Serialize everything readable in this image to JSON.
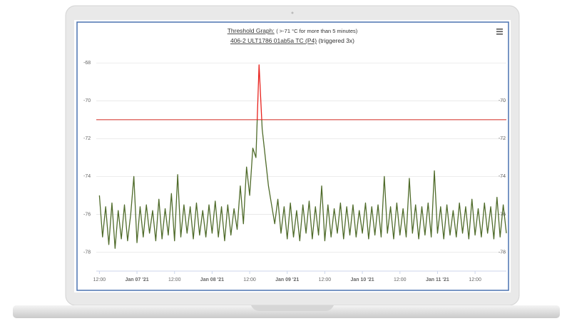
{
  "chart_data": {
    "type": "line",
    "title": "Threshold Graph:",
    "title_note": "( >-71 °C for more than 5 minutes)",
    "subtitle": "406-2 ULT1786 01ab5a TC (P4)",
    "subtitle_note": "(triggered 3x)",
    "threshold": -71,
    "threshold_color": "#d9423a",
    "exceed_color": "#e8211c",
    "x": [
      0,
      1,
      2,
      3,
      4,
      5,
      6,
      7,
      8,
      9,
      10,
      11,
      12,
      13,
      14,
      15,
      16,
      17,
      18,
      19,
      20,
      21,
      22,
      23,
      24,
      25,
      26,
      27,
      28,
      29,
      30,
      31,
      32,
      33,
      34,
      35,
      36,
      37,
      38,
      39,
      40,
      41,
      42,
      43,
      44,
      45,
      46,
      47,
      48,
      49,
      50,
      51,
      52,
      53,
      54,
      55,
      56,
      57,
      58,
      59,
      60,
      61,
      62,
      63,
      64,
      65,
      66,
      67,
      68,
      69,
      70,
      71,
      72,
      73,
      74,
      75,
      76,
      77,
      78,
      79,
      80,
      81,
      82,
      83,
      84,
      85,
      86,
      87,
      88,
      89,
      90,
      91,
      92,
      93,
      94,
      95,
      96,
      97,
      98,
      99,
      100,
      101,
      102,
      103,
      104,
      105,
      106,
      107,
      108,
      109,
      110,
      111,
      112,
      113,
      114,
      115,
      116,
      117,
      118,
      119,
      120,
      121,
      122,
      123,
      124,
      125,
      126,
      127,
      128,
      129,
      130
    ],
    "series": [
      {
        "color": "#4f6b2a",
        "values": [
          -75.0,
          -77.2,
          -75.6,
          -77.6,
          -75.4,
          -77.8,
          -75.8,
          -77.3,
          -75.5,
          -77.4,
          -76.0,
          -74.0,
          -77.5,
          -75.6,
          -77.2,
          -75.5,
          -77.0,
          -75.8,
          -77.4,
          -75.2,
          -77.3,
          -75.7,
          -77.1,
          -74.9,
          -77.4,
          -73.9,
          -77.2,
          -75.5,
          -77.0,
          -75.6,
          -77.3,
          -75.4,
          -77.1,
          -75.8,
          -77.2,
          -75.5,
          -77.0,
          -75.3,
          -77.2,
          -75.6,
          -77.4,
          -75.5,
          -77.1,
          -75.7,
          -76.8,
          -74.5,
          -76.5,
          -73.5,
          -75.0,
          -72.5,
          -73.0,
          -68.1,
          -71.5,
          -73.0,
          -74.5,
          -75.5,
          -76.5,
          -75.2,
          -77.0,
          -75.6,
          -77.3,
          -75.4,
          -77.2,
          -75.8,
          -77.4,
          -75.5,
          -77.0,
          -75.3,
          -77.3,
          -75.6,
          -77.1,
          -74.5,
          -77.4,
          -75.5,
          -77.2,
          -75.7,
          -77.0,
          -75.4,
          -77.3,
          -75.6,
          -77.1,
          -75.5,
          -77.2,
          -75.8,
          -77.0,
          -75.4,
          -77.3,
          -75.6,
          -77.1,
          -75.5,
          -77.2,
          -74.0,
          -77.0,
          -75.6,
          -77.3,
          -75.4,
          -77.1,
          -75.7,
          -77.2,
          -74.1,
          -77.0,
          -75.5,
          -77.3,
          -75.6,
          -77.1,
          -75.4,
          -77.2,
          -73.7,
          -77.0,
          -75.6,
          -77.3,
          -75.5,
          -77.1,
          -75.8,
          -77.2,
          -75.4,
          -77.0,
          -75.6,
          -77.3,
          -75.2,
          -77.1,
          -75.7,
          -77.2,
          -75.4,
          -77.0,
          -75.6,
          -77.3,
          -75.1,
          -77.2,
          -75.5,
          -77.0
        ]
      }
    ],
    "xlim": [
      -1,
      130
    ],
    "xticks": [
      {
        "value": 0,
        "label": "12:00"
      },
      {
        "value": 12,
        "label": "Jan 07 '21"
      },
      {
        "value": 24,
        "label": "12:00"
      },
      {
        "value": 36,
        "label": "Jan 08 '21"
      },
      {
        "value": 48,
        "label": "12:00"
      },
      {
        "value": 60,
        "label": "Jan 09 '21"
      },
      {
        "value": 72,
        "label": "12:00"
      },
      {
        "value": 84,
        "label": "Jan 10 '21"
      },
      {
        "value": 96,
        "label": "12:00"
      },
      {
        "value": 108,
        "label": "Jan 11 '21"
      },
      {
        "value": 120,
        "label": "12:00"
      }
    ],
    "ylim": [
      -79,
      -67.5
    ],
    "yticks": [
      -68,
      -70,
      -72,
      -74,
      -76,
      -78
    ],
    "y2lim": [
      -79,
      -67.5
    ],
    "y2ticks": [
      -70,
      -72,
      -74,
      -76,
      -78
    ],
    "grid": true
  }
}
